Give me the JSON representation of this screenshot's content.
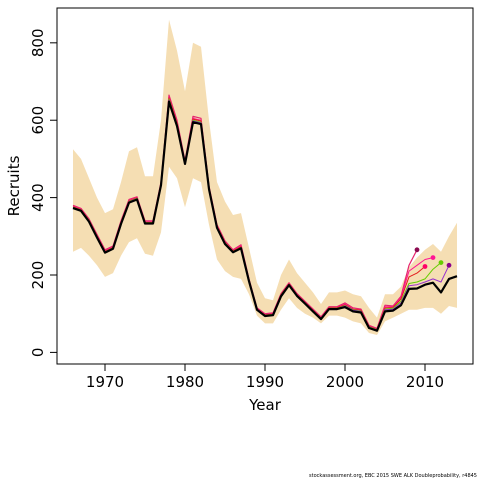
{
  "chart_data": {
    "type": "line",
    "xlabel": "Year",
    "ylabel": "Recruits",
    "xlim": [
      1964,
      2016
    ],
    "ylim": [
      -30,
      890
    ],
    "xticks": [
      1970,
      1980,
      1990,
      2000,
      2010
    ],
    "yticks": [
      0,
      200,
      400,
      600,
      800
    ],
    "grid": false,
    "legend": "none",
    "band": {
      "color": "#F5DEB3",
      "x": [
        1966,
        1967,
        1968,
        1969,
        1970,
        1971,
        1972,
        1973,
        1974,
        1975,
        1976,
        1977,
        1978,
        1979,
        1980,
        1981,
        1982,
        1983,
        1984,
        1985,
        1986,
        1987,
        1988,
        1989,
        1990,
        1991,
        1992,
        1993,
        1994,
        1995,
        1996,
        1997,
        1998,
        1999,
        2000,
        2001,
        2002,
        2003,
        2004,
        2005,
        2006,
        2007,
        2008,
        2009,
        2010,
        2011,
        2012,
        2013,
        2014
      ],
      "upper": [
        525,
        500,
        450,
        400,
        360,
        370,
        440,
        520,
        530,
        455,
        455,
        600,
        860,
        780,
        675,
        800,
        790,
        600,
        440,
        390,
        355,
        360,
        270,
        180,
        140,
        135,
        200,
        240,
        205,
        180,
        155,
        125,
        155,
        155,
        160,
        150,
        145,
        115,
        90,
        150,
        150,
        170,
        220,
        245,
        265,
        280,
        260,
        300,
        335
      ],
      "lower": [
        260,
        270,
        250,
        225,
        195,
        205,
        250,
        285,
        295,
        255,
        250,
        310,
        480,
        450,
        375,
        450,
        440,
        330,
        240,
        210,
        195,
        190,
        150,
        95,
        75,
        75,
        110,
        140,
        115,
        100,
        90,
        75,
        95,
        95,
        90,
        80,
        75,
        50,
        45,
        80,
        90,
        100,
        110,
        110,
        115,
        115,
        100,
        120,
        115
      ]
    },
    "series": [
      {
        "color": "#E5266E",
        "width": 1.2,
        "x": [
          1966,
          1967,
          1968,
          1969,
          1970,
          1971,
          1972,
          1973,
          1974,
          1975,
          1976,
          1977,
          1978,
          1979,
          1980,
          1981,
          1982,
          1983,
          1984,
          1985,
          1986,
          1987,
          1988,
          1989,
          1990,
          1991,
          1992,
          1993,
          1994,
          1995,
          1996,
          1997,
          1998,
          1999,
          2000,
          2001,
          2002,
          2003,
          2004,
          2005,
          2006,
          2007,
          2008,
          2009
        ],
        "values": [
          380,
          372,
          345,
          305,
          265,
          275,
          340,
          395,
          402,
          340,
          340,
          440,
          665,
          600,
          495,
          610,
          605,
          430,
          330,
          288,
          265,
          278,
          190,
          115,
          100,
          102,
          152,
          180,
          152,
          132,
          112,
          92,
          118,
          118,
          128,
          115,
          112,
          70,
          62,
          122,
          120,
          145,
          225,
          265
        ],
        "end_marker": "#8B0A50"
      },
      {
        "color": "#FF1493",
        "width": 1.0,
        "x": [
          1966,
          1967,
          1968,
          1969,
          1970,
          1971,
          1972,
          1973,
          1974,
          1975,
          1976,
          1977,
          1978,
          1979,
          1980,
          1981,
          1982,
          1983,
          1984,
          1985,
          1986,
          1987,
          1988,
          1989,
          1990,
          1991,
          1992,
          1993,
          1994,
          1995,
          1996,
          1997,
          1998,
          1999,
          2000,
          2001,
          2002,
          2003,
          2004,
          2005,
          2006,
          2007,
          2008,
          2009,
          2010,
          2011
        ],
        "values": [
          377,
          370,
          343,
          302,
          262,
          272,
          337,
          392,
          400,
          337,
          337,
          437,
          660,
          595,
          492,
          605,
          600,
          428,
          328,
          285,
          263,
          275,
          188,
          113,
          98,
          100,
          150,
          178,
          150,
          130,
          110,
          90,
          116,
          116,
          125,
          112,
          110,
          68,
          60,
          118,
          118,
          142,
          210,
          225,
          240,
          245
        ],
        "end_marker": "#FF1493"
      },
      {
        "color": "#E41A1C",
        "width": 1.0,
        "x": [
          1966,
          1967,
          1968,
          1969,
          1970,
          1971,
          1972,
          1973,
          1974,
          1975,
          1976,
          1977,
          1978,
          1979,
          1980,
          1981,
          1982,
          1983,
          1984,
          1985,
          1986,
          1987,
          1988,
          1989,
          1990,
          1991,
          1992,
          1993,
          1994,
          1995,
          1996,
          1997,
          1998,
          1999,
          2000,
          2001,
          2002,
          2003,
          2004,
          2005,
          2006,
          2007,
          2008,
          2009,
          2010
        ],
        "values": [
          376,
          369,
          342,
          301,
          261,
          271,
          336,
          391,
          399,
          336,
          336,
          436,
          658,
          593,
          491,
          603,
          598,
          427,
          327,
          284,
          262,
          273,
          187,
          112,
          97,
          99,
          149,
          177,
          149,
          129,
          109,
          89,
          115,
          115,
          123,
          111,
          109,
          67,
          59,
          115,
          116,
          138,
          195,
          205,
          222
        ],
        "end_marker": "#FF0066"
      },
      {
        "color": "#66CD00",
        "width": 1.0,
        "x": [
          1966,
          1967,
          1968,
          1969,
          1970,
          1971,
          1972,
          1973,
          1974,
          1975,
          1976,
          1977,
          1978,
          1979,
          1980,
          1981,
          1982,
          1983,
          1984,
          1985,
          1986,
          1987,
          1988,
          1989,
          1990,
          1991,
          1992,
          1993,
          1994,
          1995,
          1996,
          1997,
          1998,
          1999,
          2000,
          2001,
          2002,
          2003,
          2004,
          2005,
          2006,
          2007,
          2008,
          2009,
          2010,
          2011,
          2012
        ],
        "values": [
          375,
          368,
          341,
          300,
          260,
          270,
          335,
          390,
          398,
          335,
          335,
          435,
          655,
          590,
          490,
          600,
          595,
          425,
          325,
          283,
          261,
          271,
          186,
          111,
          96,
          98,
          148,
          176,
          148,
          128,
          108,
          88,
          114,
          114,
          121,
          110,
          107,
          66,
          58,
          112,
          114,
          132,
          178,
          182,
          190,
          215,
          232
        ],
        "end_marker": "#66CD00"
      },
      {
        "color": "#9932CC",
        "width": 1.0,
        "x": [
          1966,
          1967,
          1968,
          1969,
          1970,
          1971,
          1972,
          1973,
          1974,
          1975,
          1976,
          1977,
          1978,
          1979,
          1980,
          1981,
          1982,
          1983,
          1984,
          1985,
          1986,
          1987,
          1988,
          1989,
          1990,
          1991,
          1992,
          1993,
          1994,
          1995,
          1996,
          1997,
          1998,
          1999,
          2000,
          2001,
          2002,
          2003,
          2004,
          2005,
          2006,
          2007,
          2008,
          2009,
          2010,
          2011,
          2012,
          2013
        ],
        "values": [
          374,
          367,
          340,
          299,
          259,
          269,
          334,
          389,
          397,
          334,
          334,
          434,
          652,
          588,
          489,
          598,
          593,
          424,
          324,
          282,
          260,
          270,
          185,
          110,
          95,
          97,
          147,
          175,
          147,
          127,
          107,
          87,
          113,
          113,
          120,
          109,
          106,
          65,
          57,
          110,
          112,
          128,
          172,
          175,
          182,
          190,
          182,
          225
        ],
        "end_marker": "#8B008B"
      },
      {
        "color": "#000000",
        "width": 2.2,
        "x": [
          1966,
          1967,
          1968,
          1969,
          1970,
          1971,
          1972,
          1973,
          1974,
          1975,
          1976,
          1977,
          1978,
          1979,
          1980,
          1981,
          1982,
          1983,
          1984,
          1985,
          1986,
          1987,
          1988,
          1989,
          1990,
          1991,
          1992,
          1993,
          1994,
          1995,
          1996,
          1997,
          1998,
          1999,
          2000,
          2001,
          2002,
          2003,
          2004,
          2005,
          2006,
          2007,
          2008,
          2009,
          2010,
          2011,
          2012,
          2013,
          2014
        ],
        "values": [
          373,
          366,
          338,
          297,
          258,
          268,
          332,
          387,
          395,
          333,
          333,
          432,
          648,
          585,
          487,
          595,
          590,
          422,
          322,
          280,
          259,
          269,
          184,
          110,
          94,
          96,
          145,
          174,
          146,
          126,
          106,
          86,
          112,
          112,
          117,
          106,
          103,
          63,
          56,
          106,
          108,
          122,
          164,
          165,
          175,
          180,
          155,
          190,
          197
        ]
      }
    ],
    "footer": "stockassessment.org, EBC 2015 SWE ALK Doubleprobability, r4845"
  }
}
